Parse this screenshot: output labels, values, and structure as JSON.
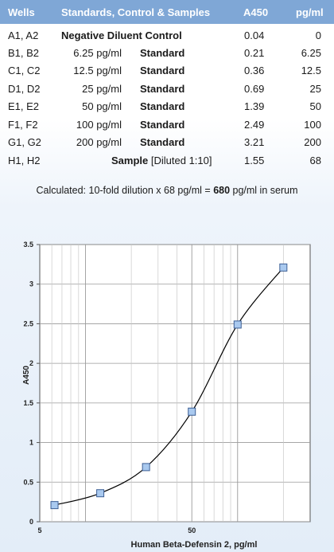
{
  "table": {
    "headers": {
      "wells": "Wells",
      "standards": "Standards, Control & Samples",
      "a450": "A450",
      "pgml": "pg/ml"
    },
    "rows": [
      {
        "wells": "A1, A2",
        "conc": "",
        "type": "Negative Diluent Control",
        "a450": "0.04",
        "pgml": "0"
      },
      {
        "wells": "B1, B2",
        "conc": "6.25 pg/ml",
        "type": "Standard",
        "a450": "0.21",
        "pgml": "6.25"
      },
      {
        "wells": "C1, C2",
        "conc": "12.5 pg/ml",
        "type": "Standard",
        "a450": "0.36",
        "pgml": "12.5"
      },
      {
        "wells": "D1, D2",
        "conc": "25 pg/ml",
        "type": "Standard",
        "a450": "0.69",
        "pgml": "25"
      },
      {
        "wells": "E1, E2",
        "conc": "50 pg/ml",
        "type": "Standard",
        "a450": "1.39",
        "pgml": "50"
      },
      {
        "wells": "F1, F2",
        "conc": "100 pg/ml",
        "type": "Standard",
        "a450": "2.49",
        "pgml": "100"
      },
      {
        "wells": "G1, G2",
        "conc": "200 pg/ml",
        "type": "Standard",
        "a450": "3.21",
        "pgml": "200"
      },
      {
        "wells": "H1, H2",
        "conc": "",
        "type": "Sample",
        "note": "[Diluted 1:10]",
        "a450": "1.55",
        "pgml": "68"
      }
    ]
  },
  "calculation": {
    "prefix": "Calculated: 10-fold dilution  x 68 pg/ml = ",
    "result": "680",
    "suffix": " pg/ml in serum"
  },
  "chart_data": {
    "type": "line",
    "xscale": "log",
    "xlim": [
      5,
      300
    ],
    "ylim": [
      0,
      3.5
    ],
    "xticks": [
      5,
      50
    ],
    "yticks": [
      0,
      0.5,
      1,
      1.5,
      2,
      2.5,
      3,
      3.5
    ],
    "ylabel": "A450",
    "xlabel": "Human Beta-Defensin 2, pg/ml",
    "grid": true,
    "colors": {
      "marker": "#a9c9ef",
      "marker_edge": "#3d5f95",
      "line": "#000000"
    },
    "series": [
      {
        "x": [
          6.25,
          12.5,
          25,
          50,
          100,
          200
        ],
        "y": [
          0.21,
          0.36,
          0.69,
          1.39,
          2.49,
          3.21
        ]
      }
    ]
  }
}
